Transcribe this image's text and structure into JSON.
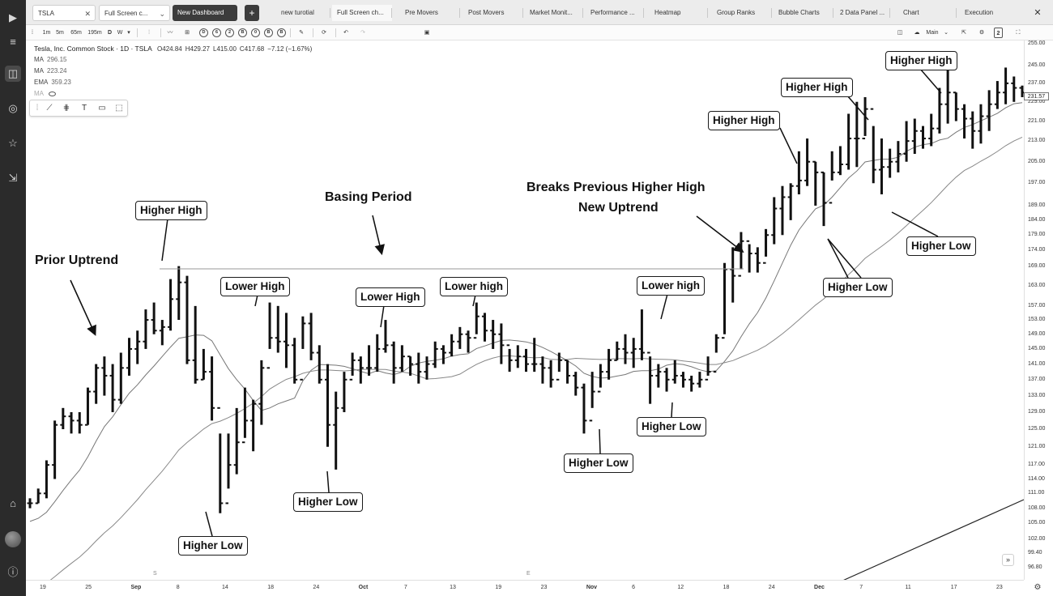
{
  "tabs": {
    "symbol": "TSLA",
    "layout_name": "Full Screen c...",
    "new_dashboard": "New Dashboard",
    "add": "+",
    "pages": [
      "new turotial",
      "Full Screen ch...",
      "Pre Movers",
      "Post Movers",
      "Market Monit...",
      "Performance ...",
      "Heatmap",
      "Group Ranks",
      "Bubble Charts",
      "2 Data Panel ...",
      "Chart",
      "Execution"
    ],
    "close": "✕"
  },
  "toolbar": {
    "timeframes": [
      "1m",
      "5m",
      "65m",
      "195m",
      "D",
      "W"
    ],
    "dropdown": "▾",
    "letters": [
      "D",
      "6",
      "2",
      "B",
      "0",
      "B",
      "B"
    ],
    "layout": "Main",
    "badge": "2"
  },
  "legend": {
    "title": "Tesla, Inc. Common Stock · 1D · TSLA",
    "ohlc": [
      "O424.84",
      "H429.27",
      "L415.00",
      "C417.68",
      "−7.12 (−1.67%)"
    ],
    "indicators": [
      {
        "label": "MA",
        "value": "296.15"
      },
      {
        "label": "MA",
        "value": "223.24"
      },
      {
        "label": "EMA",
        "value": "359.23"
      },
      {
        "label": "MA",
        "value": ""
      }
    ]
  },
  "price_axis": {
    "ticks": [
      "255.00",
      "245.00",
      "237.00",
      "229.00",
      "221.00",
      "213.00",
      "205.00",
      "197.00",
      "189.00",
      "184.00",
      "179.00",
      "174.00",
      "169.00",
      "163.00",
      "157.00",
      "153.00",
      "149.00",
      "145.00",
      "141.00",
      "137.00",
      "133.00",
      "129.00",
      "125.00",
      "121.00",
      "117.00",
      "114.00",
      "111.00",
      "108.00",
      "105.00",
      "102.00",
      "99.40",
      "96.80"
    ],
    "last_price": "231.57"
  },
  "time_axis": {
    "labels": [
      "19",
      "25",
      "Sep",
      "8",
      "14",
      "18",
      "24",
      "Oct",
      "7",
      "13",
      "19",
      "23",
      "Nov",
      "6",
      "12",
      "18",
      "24",
      "Dec",
      "7",
      "11",
      "17",
      "23"
    ],
    "markers": [
      "S",
      "E"
    ]
  },
  "annotations": {
    "prior_uptrend": "Prior Uptrend",
    "basing_period": "Basing Period",
    "breaks_line1": "Breaks Previous Higher High",
    "breaks_line2": "New Uptrend",
    "higher_high_1": "Higher High",
    "lower_high_1": "Lower High",
    "lower_high_2": "Lower High",
    "lower_high_3": "Lower high",
    "lower_high_4": "Lower high",
    "higher_low_1": "Higher Low",
    "higher_low_2": "Higher Low",
    "higher_low_3": "Higher Low",
    "higher_low_4": "Higher Low",
    "higher_low_5": "Higher Low",
    "higher_low_6": "Higher Low",
    "higher_high_2": "Higher High",
    "higher_high_3": "Higher High",
    "higher_high_4": "Higher High"
  },
  "chart_data": {
    "type": "ohlc-bar",
    "price_scale": "log",
    "ylim": [
      96.8,
      255
    ],
    "bars_hlc": [
      [
        110,
        108,
        109
      ],
      [
        112,
        109,
        111
      ],
      [
        118,
        110,
        117
      ],
      [
        127,
        114,
        126
      ],
      [
        130,
        125,
        128
      ],
      [
        129,
        124,
        127
      ],
      [
        129,
        124,
        126
      ],
      [
        135,
        126,
        134
      ],
      [
        141,
        131,
        140
      ],
      [
        143,
        133,
        138
      ],
      [
        141,
        129,
        132
      ],
      [
        144,
        131,
        140
      ],
      [
        148,
        138,
        145
      ],
      [
        150,
        141,
        147
      ],
      [
        156,
        145,
        153
      ],
      [
        158,
        149,
        150
      ],
      [
        153,
        146,
        151
      ],
      [
        165,
        150,
        159
      ],
      [
        169,
        153,
        164
      ],
      [
        166,
        141,
        142
      ],
      [
        157,
        136,
        137
      ],
      [
        145,
        137,
        139
      ],
      [
        143,
        127,
        130
      ],
      [
        124,
        107,
        109
      ],
      [
        124,
        112,
        117
      ],
      [
        130,
        115,
        122
      ],
      [
        135,
        123,
        127
      ],
      [
        132,
        120,
        131
      ],
      [
        142,
        126,
        140
      ],
      [
        158,
        145,
        148
      ],
      [
        157,
        144,
        147
      ],
      [
        155,
        140,
        146
      ],
      [
        148,
        136,
        137
      ],
      [
        154,
        145,
        152
      ],
      [
        155,
        142,
        144
      ],
      [
        146,
        136,
        137
      ],
      [
        141,
        121,
        126
      ],
      [
        134,
        116,
        130
      ],
      [
        139,
        129,
        137
      ],
      [
        144,
        138,
        142
      ],
      [
        143,
        136,
        140
      ],
      [
        146,
        138,
        140
      ],
      [
        149,
        139,
        145
      ],
      [
        153,
        144,
        146
      ],
      [
        147,
        136,
        140
      ],
      [
        146,
        139,
        143
      ],
      [
        143,
        138,
        141
      ],
      [
        144,
        136,
        139
      ],
      [
        143,
        137,
        141
      ],
      [
        147,
        140,
        145
      ],
      [
        146,
        141,
        144
      ],
      [
        149,
        143,
        147
      ],
      [
        151,
        145,
        149
      ],
      [
        150,
        144,
        148
      ],
      [
        158,
        149,
        154
      ],
      [
        155,
        147,
        150
      ],
      [
        153,
        145,
        149
      ],
      [
        152,
        141,
        146
      ],
      [
        145,
        139,
        142
      ],
      [
        146,
        140,
        143
      ],
      [
        145,
        139,
        141
      ],
      [
        148,
        139,
        141
      ],
      [
        143,
        136,
        140
      ],
      [
        142,
        135,
        137
      ],
      [
        144,
        139,
        142
      ],
      [
        142,
        136,
        138
      ],
      [
        139,
        133,
        135
      ],
      [
        136,
        124,
        127
      ],
      [
        139,
        130,
        134
      ],
      [
        141,
        135,
        139
      ],
      [
        145,
        137,
        142
      ],
      [
        147,
        142,
        145
      ],
      [
        149,
        141,
        144
      ],
      [
        148,
        140,
        145
      ],
      [
        156,
        142,
        144
      ],
      [
        143,
        131,
        138
      ],
      [
        141,
        135,
        139
      ],
      [
        140,
        134,
        137
      ],
      [
        142,
        136,
        138
      ],
      [
        139,
        135,
        137
      ],
      [
        138,
        134,
        136
      ],
      [
        139,
        135,
        137
      ],
      [
        143,
        138,
        139
      ],
      [
        149,
        144,
        148
      ],
      [
        170,
        149,
        168
      ],
      [
        175,
        158,
        166
      ],
      [
        180,
        168,
        177
      ],
      [
        176,
        167,
        173
      ],
      [
        175,
        167,
        170
      ],
      [
        181,
        172,
        179
      ],
      [
        192,
        176,
        188
      ],
      [
        196,
        179,
        192
      ],
      [
        197,
        184,
        196
      ],
      [
        209,
        193,
        198
      ],
      [
        214,
        196,
        205
      ],
      [
        205,
        189,
        201
      ],
      [
        201,
        182,
        190
      ],
      [
        209,
        198,
        201
      ],
      [
        211,
        200,
        204
      ],
      [
        224,
        202,
        214
      ],
      [
        229,
        203,
        214
      ],
      [
        231,
        215,
        226
      ],
      [
        219,
        197,
        202
      ],
      [
        214,
        193,
        203
      ],
      [
        210,
        199,
        205
      ],
      [
        213,
        201,
        208
      ],
      [
        221,
        205,
        213
      ],
      [
        222,
        208,
        217
      ],
      [
        219,
        210,
        214
      ],
      [
        224,
        211,
        218
      ],
      [
        235,
        216,
        228
      ],
      [
        250,
        220,
        233
      ],
      [
        233,
        221,
        226
      ],
      [
        228,
        214,
        222
      ],
      [
        225,
        210,
        217
      ],
      [
        228,
        212,
        223
      ],
      [
        234,
        217,
        228
      ],
      [
        238,
        226,
        233
      ],
      [
        244,
        228,
        237
      ],
      [
        240,
        229,
        235
      ],
      [
        236,
        231,
        233
      ]
    ]
  }
}
